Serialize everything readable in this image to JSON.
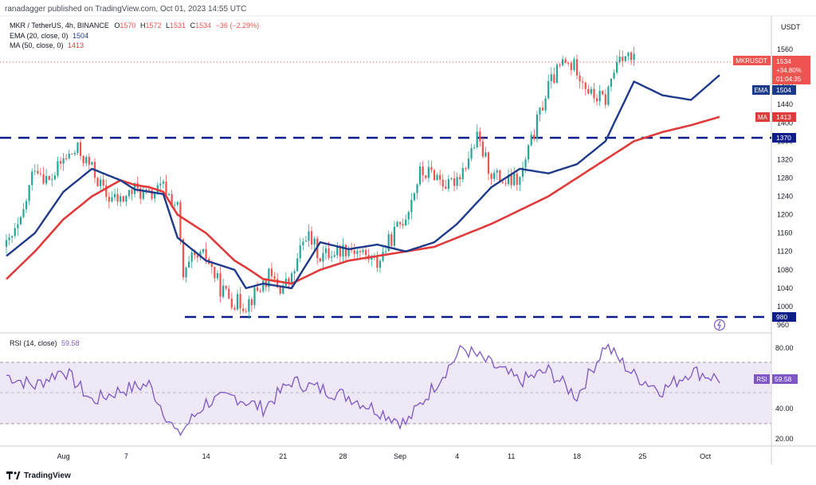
{
  "header": {
    "published": "ranadagger published on TradingView.com, Oct 01, 2023 14:55 UTC",
    "symbol_line": "MKR / TetherUS, 4h, BINANCE",
    "o_label": "O",
    "o_value": "1570",
    "h_label": "H",
    "h_value": "1572",
    "l_label": "L",
    "l_value": "1531",
    "c_label": "C",
    "c_value": "1534",
    "change": "−36 (−2.29%)",
    "ema_line": "EMA (20, close, 0)",
    "ema_value": "1504",
    "ma_line": "MA (50, close, 0)",
    "ma_value": "1413"
  },
  "price_axis": {
    "currency": "USDT",
    "ticks": [
      "1560",
      "1520",
      "1480",
      "1440",
      "1400",
      "1360",
      "1320",
      "1280",
      "1240",
      "1200",
      "1160",
      "1120",
      "1080",
      "1040",
      "1000",
      "960"
    ],
    "symbol_tag": "MKRUSDT",
    "last_price": "1534",
    "last_change": "+34.80%",
    "countdown": "01:04:35",
    "ema_tag": "EMA",
    "ema_tag_value": "1504",
    "ma_tag": "MA",
    "ma_tag_value": "1413",
    "level_high": "1370",
    "level_low": "980"
  },
  "rsi": {
    "title": "RSI (14, close)",
    "value": "59.58",
    "tag": "RSI",
    "tag_value": "59.58",
    "ticks": [
      "80.00",
      "60.00",
      "40.00",
      "20.00"
    ]
  },
  "time_axis": {
    "ticks": [
      "Aug",
      "7",
      "14",
      "21",
      "28",
      "Sep",
      "4",
      "11",
      "18",
      "25",
      "Oct"
    ]
  },
  "footer": {
    "brand": "TradingView"
  },
  "colors": {
    "up": "#26a69a",
    "down": "#ef5350",
    "ema": "#1e3a8a",
    "ma": "#e03a3a",
    "rsi": "#7e57c2",
    "level": "#0d1e8c",
    "accent": "#2962ff"
  },
  "chart_data": [
    {
      "type": "candlestick",
      "title": "MKR / TetherUS, 4h, BINANCE",
      "ylim": [
        950,
        1600
      ],
      "levels": [
        1370,
        980
      ],
      "series": [
        {
          "name": "EMA (20, close, 0)",
          "x": [
            0,
            10,
            20,
            30,
            40,
            45,
            50,
            55,
            60,
            70,
            80,
            84,
            90,
            100,
            110,
            120,
            130,
            140,
            150,
            158,
            170,
            180,
            190,
            200,
            210,
            220,
            230,
            240,
            250
          ],
          "values": [
            1110,
            1160,
            1250,
            1300,
            1275,
            1255,
            1250,
            1245,
            1150,
            1100,
            1080,
            1040,
            1050,
            1040,
            1140,
            1125,
            1135,
            1120,
            1140,
            1180,
            1260,
            1300,
            1290,
            1310,
            1360,
            1490,
            1460,
            1450,
            1504
          ]
        },
        {
          "name": "MA (50, close, 0)",
          "x": [
            0,
            10,
            20,
            30,
            40,
            45,
            50,
            55,
            60,
            70,
            80,
            84,
            90,
            100,
            110,
            120,
            130,
            140,
            150,
            158,
            170,
            180,
            190,
            200,
            210,
            220,
            230,
            240,
            250
          ],
          "values": [
            1060,
            1120,
            1190,
            1240,
            1275,
            1265,
            1260,
            1250,
            1200,
            1160,
            1100,
            1085,
            1060,
            1050,
            1080,
            1100,
            1110,
            1120,
            1130,
            1150,
            1180,
            1210,
            1240,
            1280,
            1320,
            1360,
            1380,
            1395,
            1413
          ]
        },
        {
          "name": "RSI (14, close)",
          "x": [
            0,
            10,
            20,
            30,
            40,
            50,
            60,
            70,
            80,
            90,
            100,
            120,
            140,
            160,
            180,
            190,
            200,
            210,
            220,
            230,
            240,
            250
          ],
          "values": [
            62,
            55,
            66,
            45,
            52,
            56,
            22,
            44,
            48,
            40,
            58,
            48,
            30,
            80,
            58,
            65,
            48,
            82,
            62,
            52,
            65,
            59.58
          ]
        }
      ]
    }
  ]
}
